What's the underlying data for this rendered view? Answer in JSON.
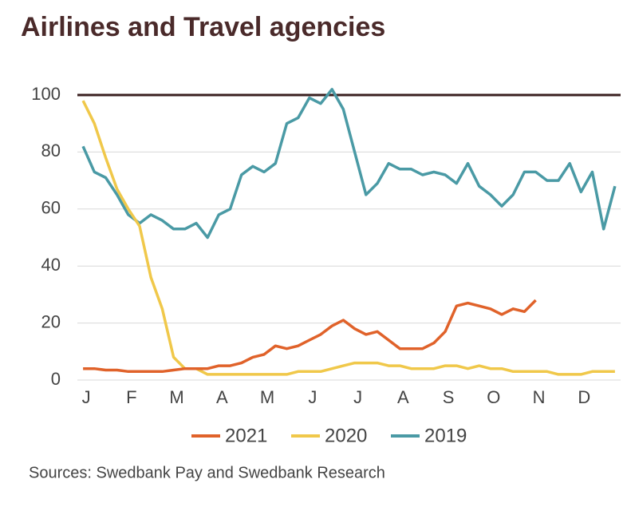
{
  "chart_data": {
    "type": "line",
    "title": "Airlines and Travel agencies",
    "categories": [
      "J",
      null,
      null,
      null,
      "F",
      null,
      null,
      null,
      "M",
      null,
      null,
      null,
      "A",
      null,
      null,
      null,
      "M",
      null,
      null,
      null,
      "J",
      null,
      null,
      null,
      "J",
      null,
      null,
      null,
      "A",
      null,
      null,
      null,
      "S",
      null,
      null,
      null,
      "O",
      null,
      null,
      null,
      "N",
      null,
      null,
      null,
      "D",
      null,
      null,
      null
    ],
    "series": [
      {
        "name": "2021",
        "color": "#e0622a",
        "values": [
          4,
          4,
          3.5,
          3.5,
          3,
          3,
          3,
          3,
          3.5,
          4,
          4,
          4,
          5,
          5,
          6,
          8,
          9,
          12,
          11,
          12,
          14,
          16,
          19,
          21,
          18,
          16,
          17,
          14,
          11,
          11,
          11,
          13,
          17,
          26,
          27,
          26,
          25,
          23,
          25,
          24,
          28,
          null,
          null,
          null,
          null,
          null,
          null,
          null
        ]
      },
      {
        "name": "2020",
        "color": "#f0c84a",
        "values": [
          98,
          90,
          78,
          67,
          60,
          54,
          36,
          25,
          8,
          4,
          4,
          2,
          2,
          2,
          2,
          2,
          2,
          2,
          2,
          3,
          3,
          3,
          4,
          5,
          6,
          6,
          6,
          5,
          5,
          4,
          4,
          4,
          5,
          5,
          4,
          5,
          4,
          4,
          3,
          3,
          3,
          3,
          2,
          2,
          2,
          3,
          3,
          3
        ]
      },
      {
        "name": "2019",
        "color": "#4a9aa5",
        "values": [
          82,
          73,
          71,
          65,
          58,
          55,
          58,
          56,
          53,
          53,
          55,
          50,
          58,
          60,
          72,
          75,
          73,
          76,
          90,
          92,
          99,
          97,
          102,
          95,
          80,
          65,
          69,
          76,
          74,
          74,
          72,
          73,
          72,
          69,
          76,
          68,
          65,
          61,
          65,
          73,
          73,
          70,
          70,
          76,
          66,
          73,
          53,
          68
        ]
      }
    ],
    "ylim": [
      0,
      100
    ],
    "yticks": [
      0,
      20,
      40,
      60,
      80,
      100
    ],
    "grid": true,
    "legend": "bottom",
    "source": "Sources: Swedbank Pay and Swedbank Research"
  }
}
